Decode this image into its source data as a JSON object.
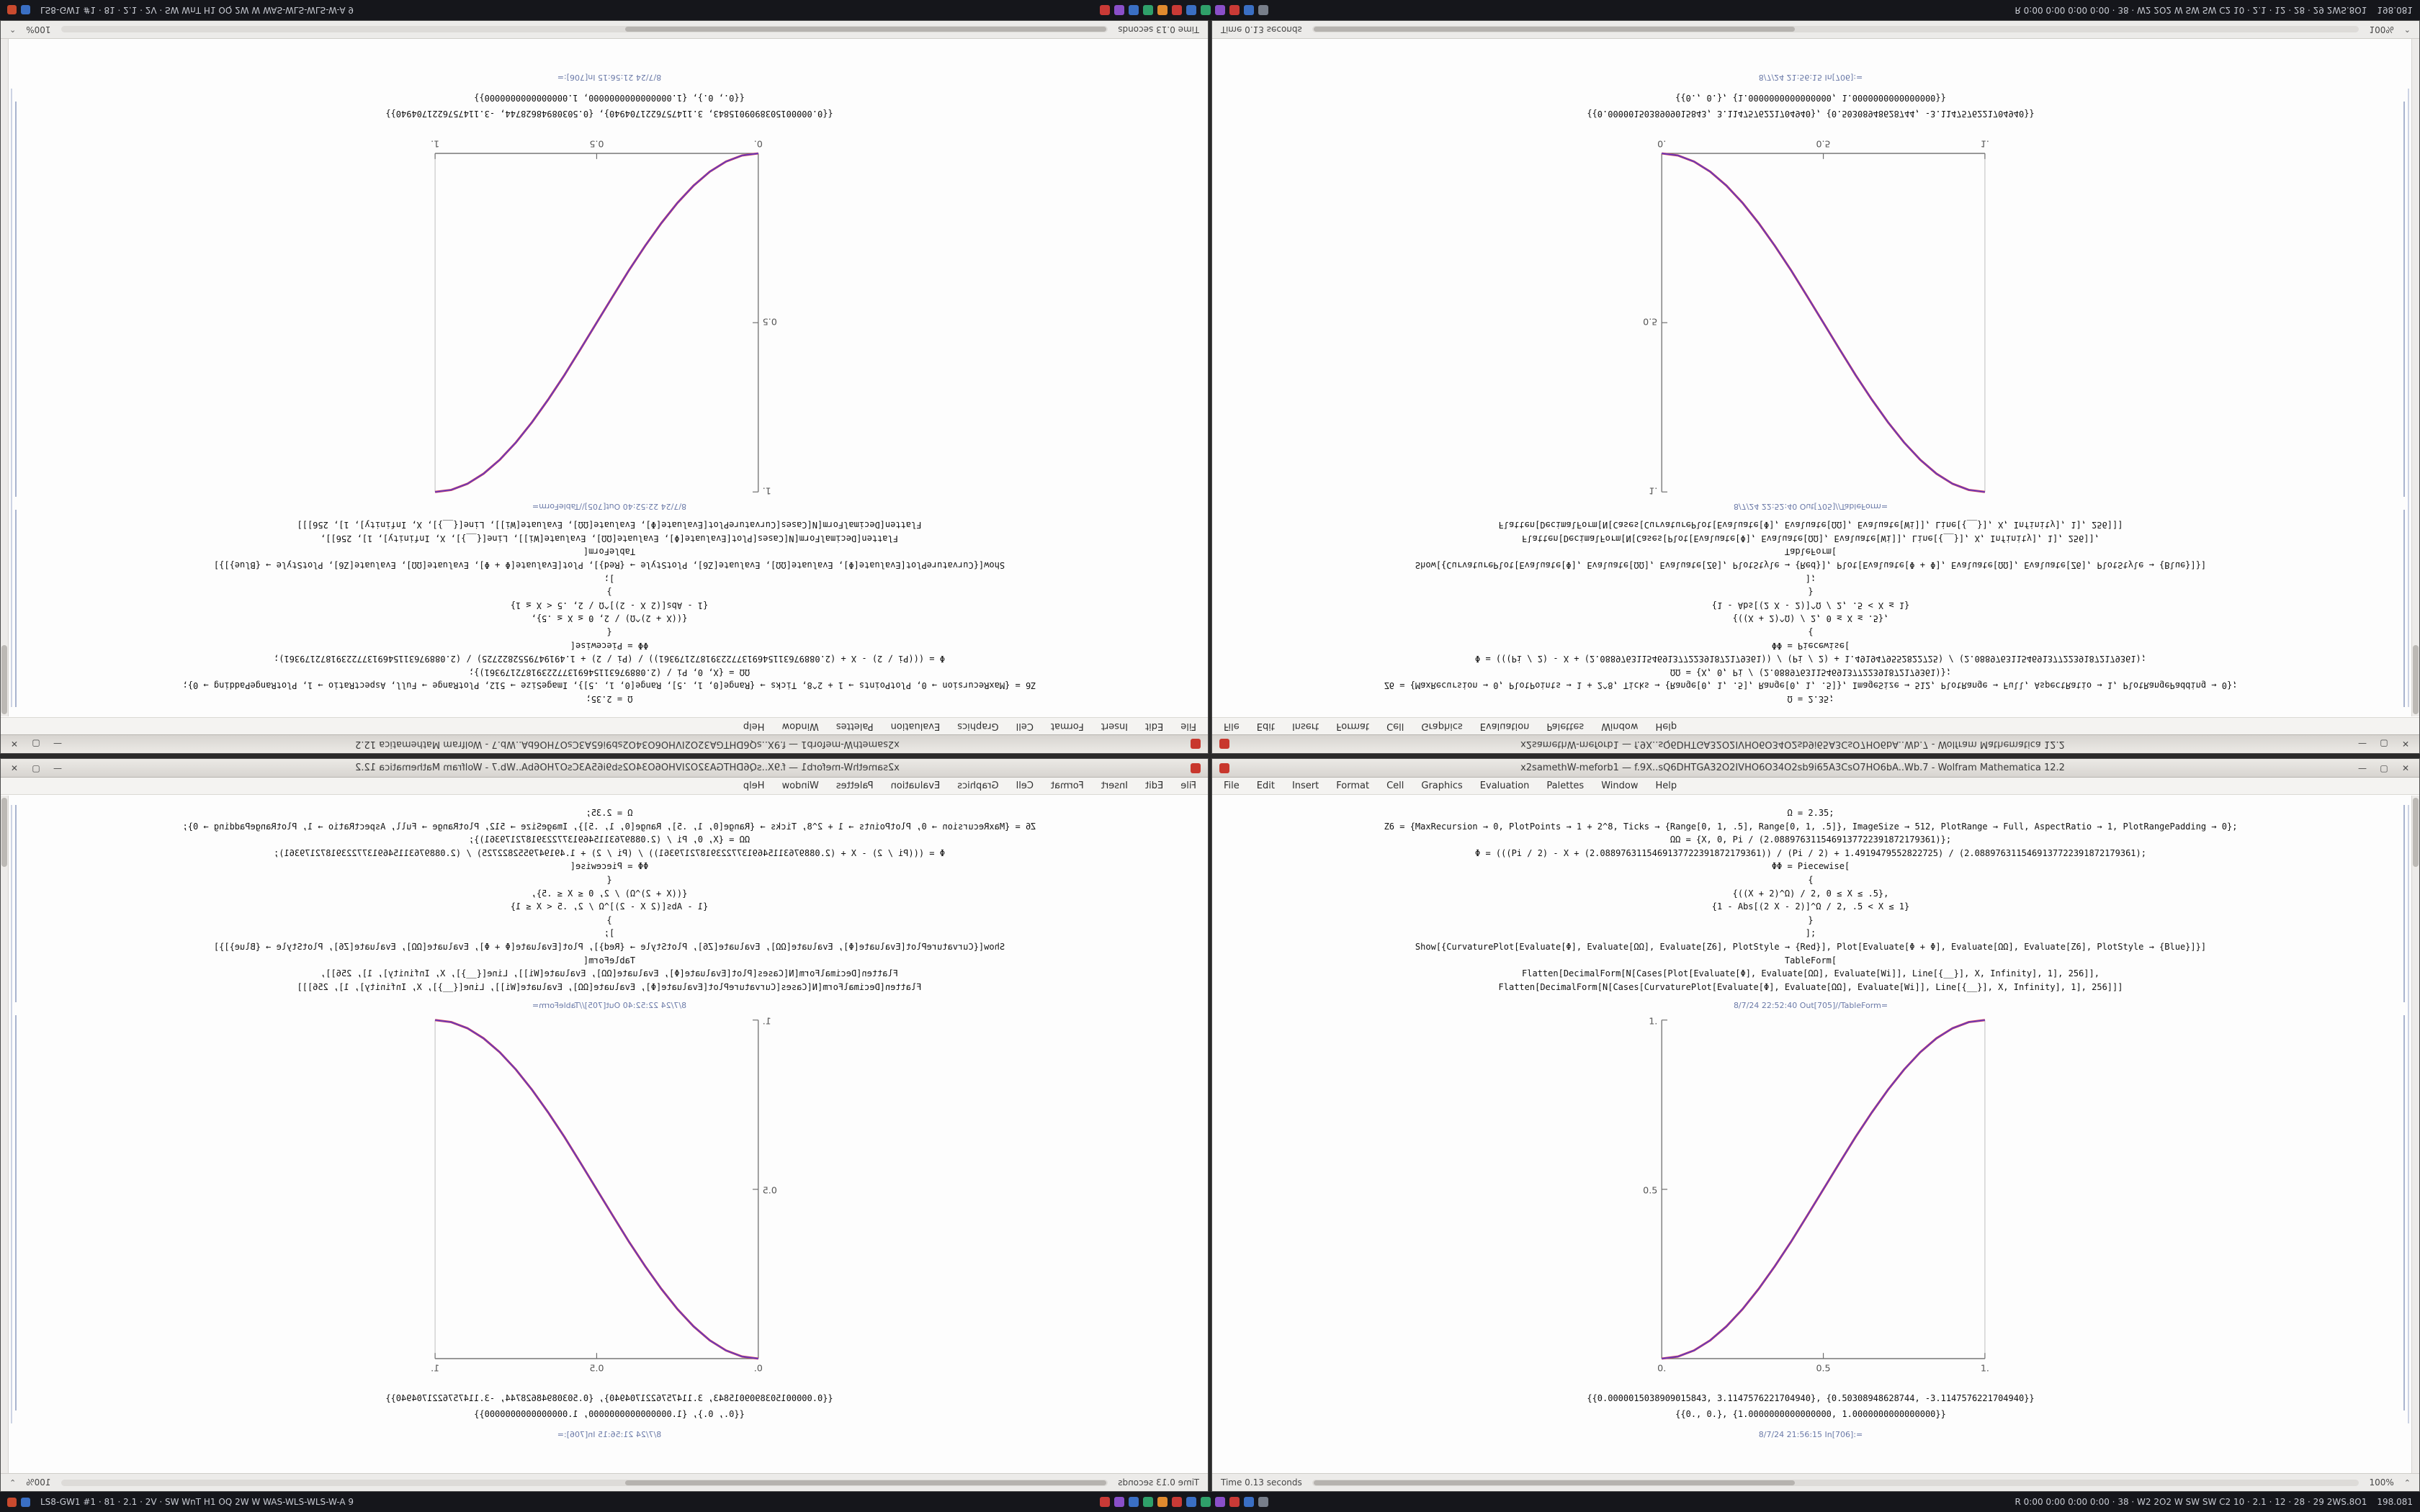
{
  "taskbar": {
    "left_icons": [
      {
        "name": "launcher-icon",
        "color": "#c94a2e"
      },
      {
        "name": "workspace-icon",
        "color": "#3a6fc4"
      }
    ],
    "status_left": "LS8-GW1 #1 · 81 · 2.1 · 2V · SW WnT H1 OQ 2W W WAS-WLS-WLS-W-A 9",
    "app_icons": [
      {
        "name": "taskbar-app-icon-1",
        "color": "#c93a36"
      },
      {
        "name": "taskbar-app-icon-2",
        "color": "#8a4fc9"
      },
      {
        "name": "taskbar-app-icon-3",
        "color": "#3a6fc4"
      },
      {
        "name": "taskbar-app-icon-4",
        "color": "#2fa06a"
      },
      {
        "name": "taskbar-app-icon-5",
        "color": "#e08a2e"
      },
      {
        "name": "taskbar-app-icon-6",
        "color": "#c93a36"
      },
      {
        "name": "taskbar-app-icon-7",
        "color": "#3a6fc4"
      },
      {
        "name": "taskbar-app-icon-8",
        "color": "#2fa06a"
      },
      {
        "name": "taskbar-app-icon-9",
        "color": "#8a4fc9"
      },
      {
        "name": "taskbar-app-icon-10",
        "color": "#c93a36"
      },
      {
        "name": "taskbar-app-icon-11",
        "color": "#3a6fc4"
      },
      {
        "name": "taskbar-app-icon-12",
        "color": "#777e8a"
      }
    ],
    "status_right": "R 0:00 0:00 0:00 0:00 · 38 · W2 2O2 W SW SW C2 10 · 2.1 · 12 · 28 · 29 2WS.8O1",
    "clock": "198.081"
  },
  "chrome": {
    "title": "x2samethW-meforb1 — f.9X..sQ6DHTGA32O2IVHO6O34O2sb9i65A3CsO7HO6bA..Wb.7 - Wolfram Mathematica 12.2",
    "menu": [
      "File",
      "Edit",
      "Insert",
      "Format",
      "Cell",
      "Graphics",
      "Evaluation",
      "Palettes",
      "Window",
      "Help"
    ],
    "controls": [
      {
        "name": "minimize-button",
        "label": "—"
      },
      {
        "name": "maximize-button",
        "label": "▢"
      },
      {
        "name": "close-button",
        "label": "✕"
      }
    ],
    "status": "Time 0.13 seconds",
    "zoom": "100%"
  },
  "notebook": {
    "code_lines": [
      "Ω = 2.35;",
      "Z6 = {MaxRecursion → 0, PlotPoints → 1 + 2^8, Ticks → {Range[0, 1, .5], Range[0, 1, .5]}, ImageSize → 512, PlotRange → Full, AspectRatio → 1, PlotRangePadding → 0};",
      "ΩΩ = {X, 0, Pi / (2.0889763115469137722391872179361)};",
      "Φ = (((Pi / 2) - X + (2.0889763115469137722391872179361)) / (Pi / 2) + 1.4919479552822725) / (2.0889763115469137722391872179361);",
      "ΦΦ = Piecewise[",
      "{",
      "{((X + 2)^Ω) / 2, 0 ≤ X ≤ .5},",
      "{1 - Abs[(2 X - 2)]^Ω / 2, .5 < X ≤ 1}",
      "}",
      "];",
      "Show[{CurvaturePlot[Evaluate[Φ], Evaluate[ΩΩ], Evaluate[Z6], PlotStyle → {Red}], Plot[Evaluate[Φ + Φ], Evaluate[ΩΩ], Evaluate[Z6], PlotStyle → {Blue}]}]",
      "TableForm[",
      "Flatten[DecimalForm[N[Cases[Plot[Evaluate[Φ], Evaluate[ΩΩ], Evaluate[Wi]], Line[{__}], X, Infinity], 1], 256]],",
      "Flatten[DecimalForm[N[Cases[CurvaturePlot[Evaluate[Φ], Evaluate[ΩΩ], Evaluate[Wi]], Line[{__}], X, Infinity], 1], 256]]]"
    ],
    "out_label": "8/7/24 22:52:40 Out[705]//TableForm=",
    "result_lines": [
      "{{0.0000015038909015843, 3.1147576221704940}, {0.50308948628744, -3.1147576221704940}}",
      "{{0., 0.}, {1.0000000000000000, 1.0000000000000000}}"
    ],
    "footer_label": "8/7/24 21:56:15 In[706]:=",
    "chart_data": {
      "type": "line",
      "title": "",
      "x": [
        0,
        0.05,
        0.1,
        0.15,
        0.2,
        0.25,
        0.3,
        0.35,
        0.4,
        0.45,
        0.5,
        0.55,
        0.6,
        0.65,
        0.7,
        0.75,
        0.8,
        0.85,
        0.9,
        0.95,
        1
      ],
      "series": [
        {
          "name": "CurvaturePlot-red",
          "color": "#cf3056",
          "values": [
            0,
            0.006,
            0.024,
            0.054,
            0.095,
            0.146,
            0.206,
            0.273,
            0.345,
            0.422,
            0.5,
            0.578,
            0.655,
            0.727,
            0.794,
            0.854,
            0.905,
            0.946,
            0.976,
            0.994,
            1
          ]
        },
        {
          "name": "Plot-blue",
          "color": "#5a3ec8",
          "values": [
            0,
            0.006,
            0.024,
            0.054,
            0.095,
            0.146,
            0.206,
            0.273,
            0.345,
            0.422,
            0.5,
            0.578,
            0.655,
            0.727,
            0.794,
            0.854,
            0.905,
            0.946,
            0.976,
            0.994,
            1
          ]
        }
      ],
      "xlim": [
        0,
        1
      ],
      "ylim": [
        0,
        1
      ],
      "xtick_labels": [
        "0.",
        "0.5",
        "1."
      ],
      "ytick_labels": [
        "0.5",
        "1."
      ],
      "legend": "none",
      "grid": false
    }
  }
}
